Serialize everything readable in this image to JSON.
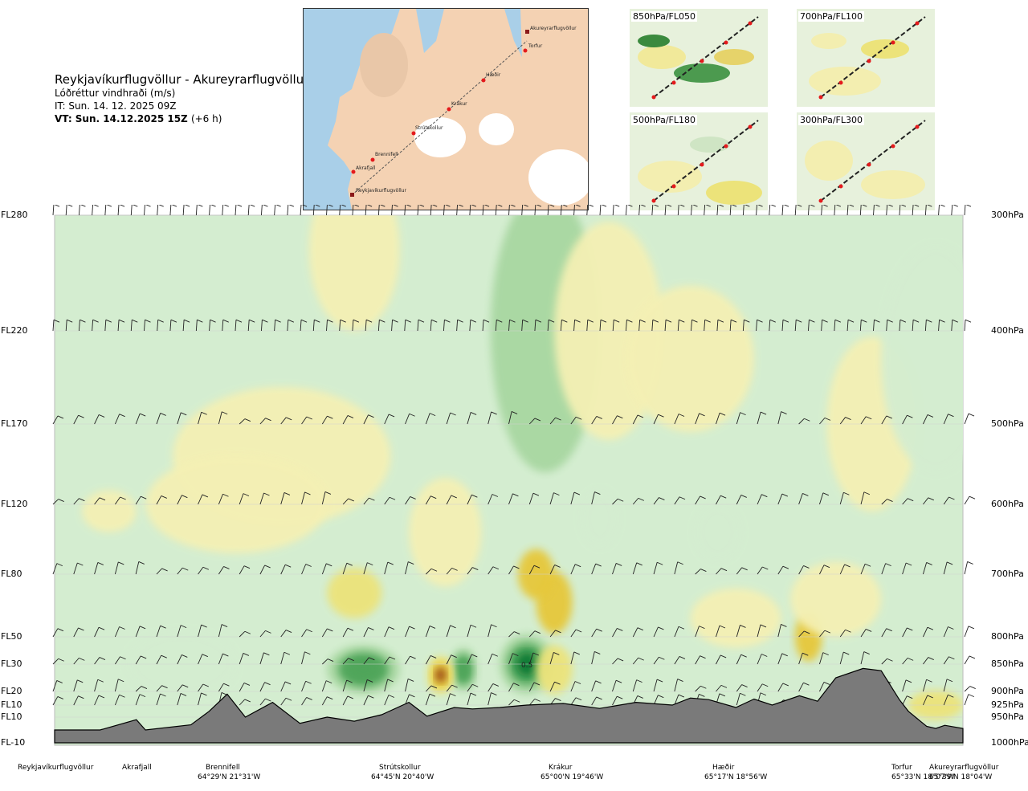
{
  "header": {
    "title": "Reykjavíkurflugvöllur - Akureyrarflugvöllur",
    "subtitle": "Lóðréttur vindhraði (m/s)",
    "issue_time": "IT: Sun. 14. 12. 2025 09Z",
    "valid_time": "VT: Sun. 14.12.2025 15Z",
    "valid_offset": "(+6 h)"
  },
  "route_map": {
    "labels": [
      "Akureyrarflugvöllur",
      "Torfur",
      "Hæðir",
      "Krákur",
      "Strútskollur",
      "Brennifell",
      "Akrafjall",
      "Reykjavíkurflugvöllur"
    ]
  },
  "mini_maps": [
    "850hPa/FL050",
    "700hPa/FL100",
    "500hPa/FL180",
    "300hPa/FL300"
  ],
  "colors": {
    "sink_light": "#f4f0b4",
    "sink_mid": "#ece37a",
    "sink_strong": "#e6c83a",
    "sink_max": "#9a4a12",
    "rise_light": "#d4edd0",
    "rise_mid": "#a8d7a1",
    "rise_strong": "#4fa55a",
    "rise_max": "#117a35",
    "terrain": "#7a7a7a",
    "route_point": "#e41a1c"
  },
  "chart_data": {
    "type": "heatmap",
    "title": "Lóðréttur vindhraði (m/s)",
    "x_unit": "position along route",
    "levels": [
      {
        "fl": "FL280",
        "p": "300hPa",
        "hpa": 300
      },
      {
        "fl": "FL220",
        "p": "400hPa",
        "hpa": 400
      },
      {
        "fl": "FL170",
        "p": "500hPa",
        "hpa": 500
      },
      {
        "fl": "FL120",
        "p": "600hPa",
        "hpa": 600
      },
      {
        "fl": "FL80",
        "p": "700hPa",
        "hpa": 700
      },
      {
        "fl": "FL50",
        "p": "800hPa",
        "hpa": 800
      },
      {
        "fl": "FL30",
        "p": "850hPa",
        "hpa": 850
      },
      {
        "fl": "FL20",
        "p": "900hPa",
        "hpa": 900
      },
      {
        "fl": "FL10",
        "p": "925hPa",
        "hpa": 925
      },
      {
        "fl": "FL10",
        "p": "950hPa",
        "hpa": 950
      },
      {
        "fl": "FL-10",
        "p": "1000hPa",
        "hpa": 1000
      }
    ],
    "waypoints": [
      {
        "name": "Reykjavíkurflugvöllur",
        "coord": "",
        "pos": 0.0
      },
      {
        "name": "Akrafjall",
        "coord": "",
        "pos": 0.09
      },
      {
        "name": "Brennifell",
        "coord": "64°29'N 21°31'W",
        "pos": 0.2
      },
      {
        "name": "Strútskollur",
        "coord": "64°45'N 20°40'W",
        "pos": 0.395
      },
      {
        "name": "Krákur",
        "coord": "65°00'N 19°46'W",
        "pos": 0.575
      },
      {
        "name": "Hæðir",
        "coord": "65°17'N 18°56'W",
        "pos": 0.73
      },
      {
        "name": "Torfur",
        "coord": "65°33'N 18°07'W",
        "pos": 0.95
      },
      {
        "name": "Akureyrarflugvöllur",
        "coord": "65°39'N 18°04'W",
        "pos": 1.0
      }
    ],
    "annotations": [
      {
        "text": "0.5",
        "pos": 0.52,
        "hpa": 850
      }
    ],
    "terrain_hpa": [
      [
        0.0,
        975
      ],
      [
        0.05,
        975
      ],
      [
        0.09,
        955
      ],
      [
        0.1,
        975
      ],
      [
        0.15,
        965
      ],
      [
        0.17,
        938
      ],
      [
        0.19,
        905
      ],
      [
        0.21,
        950
      ],
      [
        0.24,
        920
      ],
      [
        0.27,
        962
      ],
      [
        0.3,
        950
      ],
      [
        0.33,
        958
      ],
      [
        0.36,
        945
      ],
      [
        0.39,
        920
      ],
      [
        0.41,
        948
      ],
      [
        0.44,
        930
      ],
      [
        0.46,
        933
      ],
      [
        0.49,
        930
      ],
      [
        0.52,
        925
      ],
      [
        0.56,
        922
      ],
      [
        0.6,
        932
      ],
      [
        0.64,
        920
      ],
      [
        0.68,
        925
      ],
      [
        0.7,
        912
      ],
      [
        0.72,
        915
      ],
      [
        0.75,
        930
      ],
      [
        0.77,
        914
      ],
      [
        0.79,
        925
      ],
      [
        0.82,
        908
      ],
      [
        0.84,
        918
      ],
      [
        0.86,
        875
      ],
      [
        0.89,
        858
      ],
      [
        0.91,
        862
      ],
      [
        0.93,
        915
      ],
      [
        0.94,
        938
      ],
      [
        0.96,
        968
      ],
      [
        0.97,
        972
      ],
      [
        0.98,
        966
      ],
      [
        1.0,
        972
      ]
    ],
    "blobs": [
      {
        "pos": 0.25,
        "hpa": 540,
        "w": 0.12,
        "h": 90,
        "v": -0.15
      },
      {
        "pos": 0.2,
        "hpa": 600,
        "w": 0.1,
        "h": 70,
        "v": -0.2
      },
      {
        "pos": 0.33,
        "hpa": 330,
        "w": 0.05,
        "h": 70,
        "v": -0.2
      },
      {
        "pos": 0.06,
        "hpa": 610,
        "w": 0.03,
        "h": 30,
        "v": -0.2
      },
      {
        "pos": 0.33,
        "hpa": 730,
        "w": 0.03,
        "h": 40,
        "v": -0.35
      },
      {
        "pos": 0.54,
        "hpa": 400,
        "w": 0.06,
        "h": 160,
        "v": 0.3
      },
      {
        "pos": 0.61,
        "hpa": 400,
        "w": 0.06,
        "h": 120,
        "v": -0.2
      },
      {
        "pos": 0.9,
        "hpa": 500,
        "w": 0.05,
        "h": 110,
        "v": -0.15
      },
      {
        "pos": 0.97,
        "hpa": 430,
        "w": 0.06,
        "h": 130,
        "v": 0.2
      },
      {
        "pos": 0.34,
        "hpa": 860,
        "w": 0.04,
        "h": 45,
        "v": 0.8
      },
      {
        "pos": 0.45,
        "hpa": 860,
        "w": 0.015,
        "h": 40,
        "v": 0.55
      },
      {
        "pos": 0.52,
        "hpa": 850,
        "w": 0.03,
        "h": 55,
        "v": 0.9
      },
      {
        "pos": 0.55,
        "hpa": 745,
        "w": 0.02,
        "h": 50,
        "v": -0.45
      },
      {
        "pos": 0.55,
        "hpa": 860,
        "w": 0.02,
        "h": 45,
        "v": -0.3
      },
      {
        "pos": 0.53,
        "hpa": 700,
        "w": 0.02,
        "h": 40,
        "v": -0.5
      },
      {
        "pos": 0.425,
        "hpa": 870,
        "w": 0.015,
        "h": 35,
        "v": -0.9
      },
      {
        "pos": 0.83,
        "hpa": 800,
        "w": 0.015,
        "h": 45,
        "v": -0.45
      },
      {
        "pos": 0.97,
        "hpa": 925,
        "w": 0.03,
        "h": 30,
        "v": -0.3
      },
      {
        "pos": 0.73,
        "hpa": 640,
        "w": 0.025,
        "h": 40,
        "v": 0.25
      },
      {
        "pos": 0.6,
        "hpa": 620,
        "w": 0.02,
        "h": 40,
        "v": 0.2
      },
      {
        "pos": 0.7,
        "hpa": 430,
        "w": 0.07,
        "h": 80,
        "v": -0.15
      },
      {
        "pos": 0.86,
        "hpa": 740,
        "w": 0.05,
        "h": 60,
        "v": -0.15
      },
      {
        "pos": 0.75,
        "hpa": 770,
        "w": 0.05,
        "h": 50,
        "v": -0.15
      },
      {
        "pos": 0.14,
        "hpa": 850,
        "w": 0.06,
        "h": 60,
        "v": 0.12
      },
      {
        "pos": 0.43,
        "hpa": 640,
        "w": 0.04,
        "h": 80,
        "v": -0.15
      }
    ]
  }
}
